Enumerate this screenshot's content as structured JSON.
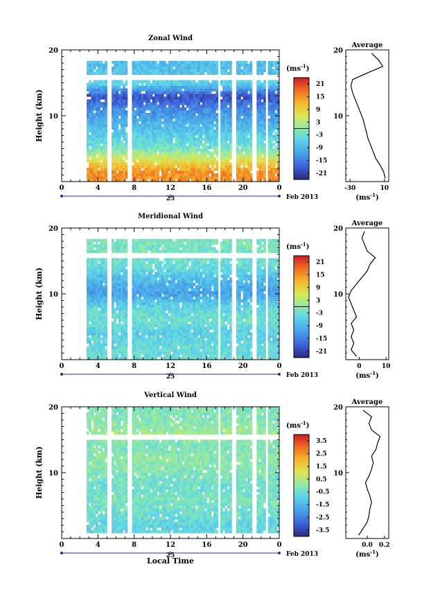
{
  "chart_data": [
    {
      "type": "heatmap",
      "title": "Zonal Wind",
      "ylabel": "Height (km)",
      "ylim": [
        0,
        20
      ],
      "yticks": [
        "10",
        "20"
      ],
      "xlim": [
        0,
        24
      ],
      "xticks": [
        "0",
        "4",
        "8",
        "12",
        "16",
        "20",
        "0"
      ],
      "date_label": "25",
      "month_label": "Feb 2013",
      "colorbar": {
        "unit": "(ms",
        "unit_exp": "-1",
        "unit_close": ")",
        "ticks": [
          "21",
          "15",
          "9",
          "3",
          "-3",
          "-9",
          "-15",
          "-21"
        ],
        "range": [
          -24,
          24
        ]
      },
      "field": {
        "heights": [
          1.5,
          3,
          5,
          7,
          9,
          11,
          13,
          15,
          17
        ],
        "values": [
          15,
          8,
          -2,
          -6,
          -10,
          -14,
          -20,
          -5,
          -8
        ]
      },
      "average": {
        "title": "Average",
        "yticks": [
          "10",
          "20"
        ],
        "xticks": [
          "-30",
          "10"
        ],
        "xlim": [
          -35,
          15
        ],
        "xlabel": "(ms",
        "xlabel_exp": "-1",
        "xlabel_close": ")",
        "profile": {
          "heights": [
            0.5,
            1.5,
            2.5,
            3.5,
            4.5,
            5.5,
            6.5,
            7.5,
            8.5,
            9.5,
            10.5,
            11.5,
            12.5,
            13.5,
            14.5,
            15.5,
            16.5,
            17.5,
            18.5,
            19.5
          ],
          "values": [
            11,
            9,
            5,
            0,
            -3,
            -6,
            -9,
            -11,
            -13,
            -15,
            -18,
            -21,
            -24,
            -27,
            -29,
            -27,
            -10,
            8,
            3,
            -5
          ]
        }
      }
    },
    {
      "type": "heatmap",
      "title": "Meridional Wind",
      "ylabel": "Height (km)",
      "ylim": [
        0,
        20
      ],
      "yticks": [
        "10",
        "20"
      ],
      "xlim": [
        0,
        24
      ],
      "xticks": [
        "0",
        "4",
        "8",
        "12",
        "16",
        "20",
        "0"
      ],
      "date_label": "25",
      "month_label": "Feb 2013",
      "colorbar": {
        "unit": "(ms",
        "unit_exp": "-1",
        "unit_close": ")",
        "ticks": [
          "21",
          "15",
          "9",
          "3",
          "-3",
          "-9",
          "-15",
          "-21"
        ],
        "range": [
          -24,
          24
        ]
      },
      "field": {
        "heights": [
          2,
          4,
          6,
          8,
          10,
          12,
          14,
          16
        ],
        "values": [
          -4,
          -6,
          -3,
          -5,
          -12,
          -9,
          -4,
          -2
        ]
      },
      "average": {
        "title": "Average",
        "yticks": [
          "10",
          "20"
        ],
        "xticks": [
          "0",
          "10"
        ],
        "xlim": [
          -5,
          11
        ],
        "xlabel": "(ms",
        "xlabel_exp": "-1",
        "xlabel_close": ")",
        "profile": {
          "heights": [
            0.5,
            1.5,
            2.5,
            3.5,
            4.5,
            5.5,
            6.5,
            7.5,
            8.5,
            9.5,
            10.5,
            11.5,
            12.5,
            13.5,
            14.5,
            15.5,
            16.5,
            17.5,
            18.5,
            19.5
          ],
          "values": [
            -1,
            -3,
            -2,
            -3,
            -2,
            -3,
            -1,
            -2,
            -3,
            -4,
            -3,
            -1,
            1,
            3,
            4,
            6,
            3,
            2,
            1,
            2
          ]
        }
      }
    },
    {
      "type": "heatmap",
      "title": "Vertical Wind",
      "ylabel": "Height (km)",
      "ylim": [
        0,
        20
      ],
      "yticks": [
        "10",
        "20"
      ],
      "xlim": [
        0,
        24
      ],
      "xticks": [
        "0",
        "4",
        "8",
        "12",
        "16",
        "20",
        "0"
      ],
      "date_label": "25",
      "month_label": "Feb 2013",
      "xlabel": "Local Time",
      "colorbar": {
        "unit": "(ms",
        "unit_exp": "-1",
        "unit_close": ")",
        "ticks": [
          "3.5",
          "2.5",
          "1.5",
          "0.5",
          "-0.5",
          "-1.5",
          "-2.5",
          "-3.5"
        ],
        "range": [
          -4,
          4
        ]
      },
      "field": {
        "heights": [
          2,
          4,
          6,
          8,
          10,
          12,
          14,
          16,
          18
        ],
        "values": [
          -0.8,
          -0.5,
          -0.3,
          -0.5,
          -0.2,
          0,
          -0.3,
          0.2,
          -0.2
        ]
      },
      "average": {
        "title": "Average",
        "yticks": [
          "10",
          "20"
        ],
        "xticks": [
          "0.0",
          "0.2"
        ],
        "xlim": [
          -0.25,
          0.25
        ],
        "xlabel": "(ms",
        "xlabel_exp": "-1",
        "xlabel_close": ")",
        "profile": {
          "heights": [
            0.5,
            1.5,
            2.5,
            3.5,
            4.5,
            5.5,
            6.5,
            7.5,
            8.5,
            9.5,
            10.5,
            11.5,
            12.5,
            13.5,
            14.5,
            15.5,
            16.5,
            17.5,
            18.5,
            19.5
          ],
          "values": [
            -0.1,
            -0.05,
            0.0,
            0.02,
            0.03,
            0.05,
            0.03,
            0.0,
            -0.02,
            0.02,
            0.05,
            0.07,
            0.05,
            0.1,
            0.12,
            0.15,
            0.05,
            0.02,
            0.05,
            -0.05
          ]
        }
      }
    }
  ]
}
